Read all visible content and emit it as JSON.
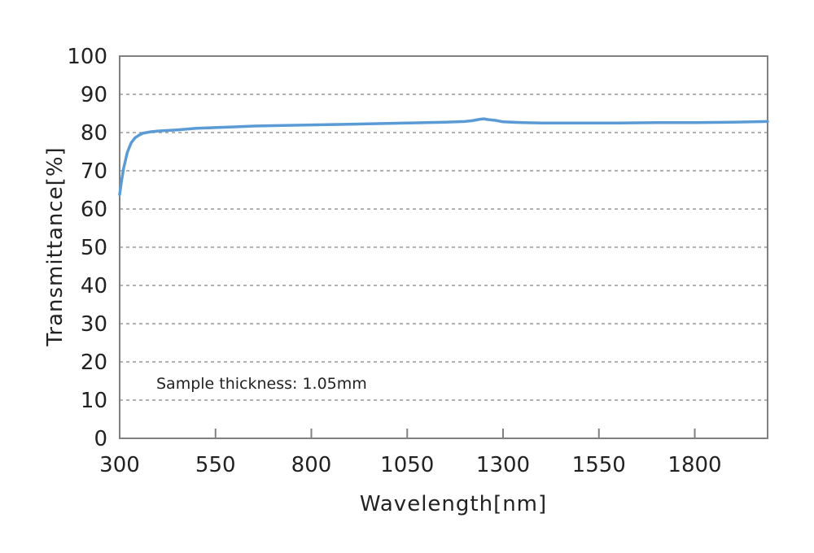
{
  "chart_data": {
    "type": "line",
    "title": "",
    "xlabel": "Wavelength[nm]",
    "ylabel": "Transmittance[%]",
    "xlim": [
      300,
      1990
    ],
    "ylim": [
      0,
      100
    ],
    "xticks": [
      300,
      550,
      800,
      1050,
      1300,
      1550,
      1800
    ],
    "yticks": [
      0,
      10,
      20,
      30,
      40,
      50,
      60,
      70,
      80,
      90,
      100
    ],
    "grid": "horizontal dashed",
    "annotation": "Sample thickness: 1.05mm",
    "line_color": "#5b9bd5",
    "series": [
      {
        "x": [
          300,
          305,
          310,
          320,
          330,
          340,
          350,
          360,
          370,
          380,
          400,
          450,
          500,
          550,
          600,
          650,
          700,
          800,
          900,
          1000,
          1050,
          1100,
          1150,
          1200,
          1220,
          1240,
          1250,
          1260,
          1280,
          1300,
          1350,
          1400,
          1500,
          1600,
          1700,
          1800,
          1900,
          1990
        ],
        "y": [
          63.8,
          67.5,
          70.5,
          74.8,
          77.3,
          78.6,
          79.3,
          79.8,
          80.0,
          80.2,
          80.4,
          80.7,
          81.1,
          81.3,
          81.5,
          81.7,
          81.8,
          82.0,
          82.2,
          82.4,
          82.5,
          82.6,
          82.7,
          82.9,
          83.1,
          83.5,
          83.6,
          83.4,
          83.2,
          82.8,
          82.6,
          82.5,
          82.5,
          82.5,
          82.6,
          82.6,
          82.7,
          82.9
        ]
      }
    ]
  }
}
